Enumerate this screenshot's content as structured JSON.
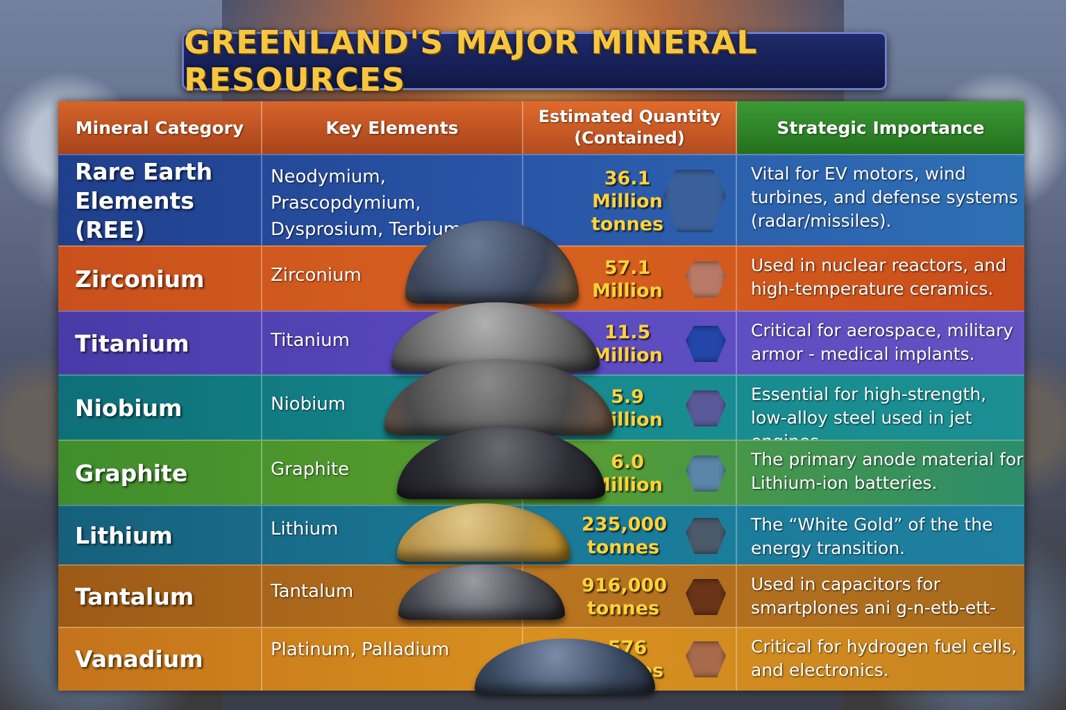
{
  "title": "GREENLAND'S MAJOR MINERAL RESOURCES",
  "headers": {
    "category": "Mineral Category",
    "elements": "Key Elements",
    "quantity_line1": "Estimated Quantity",
    "quantity_line2": "(Contained)",
    "importance": "Strategic Importance"
  },
  "rows": [
    {
      "category": "Rare Earth Elements (REE)",
      "elements": "Neodymium, Prascopdymium, Dysprosium, Terbium",
      "qty_num": "36.1",
      "qty_unit": "Million tonnes",
      "importance": "Vital for EV motors, wind turbines, and defense systems (radar/missiles).",
      "color": "#2a56a8",
      "gem_color": "#3a5f9a"
    },
    {
      "category": "Zirconium",
      "elements": "Zirconium",
      "qty_num": "57.1",
      "qty_unit": "Million",
      "importance": "Used in nuclear reactors, and high-temperature ceramics.",
      "color": "#d8621f",
      "gem_color": "#b87a66"
    },
    {
      "category": "Titanium",
      "elements": "Titanium",
      "qty_num": "11.5",
      "qty_unit": "Million",
      "importance": "Critical for aerospace, military armor - medical implants.",
      "color": "#5c4ac0",
      "gem_color": "#2346a8"
    },
    {
      "category": "Niobium",
      "elements": "Niobium",
      "qty_num": "5.9",
      "qty_unit": "Million",
      "importance": "Essential for high-strength, low-alloy steel used in jet engines.",
      "color": "#168a8e",
      "gem_color": "#5a5a9a"
    },
    {
      "category": "Graphite",
      "elements": "Graphite",
      "qty_num": "6.0",
      "qty_unit": "Million",
      "importance": "The primary anode material for Lithium-ion batteries.",
      "color": "#5a9e2e",
      "gem_color": "#5a86a8"
    },
    {
      "category": "Lithium",
      "elements": "Lithium",
      "qty_num": "235,000",
      "qty_unit": "tonnes",
      "importance": "The “White Gold” of the the energy transition.",
      "color": "#1a7a98",
      "gem_color": "#4a5a6a"
    },
    {
      "category": "Tantalum",
      "elements": "Tantalum",
      "qty_num": "916,000",
      "qty_unit": "tonnes",
      "importance": "Used in capacitors for smartplones ani g-n-etb-ett-rngys.",
      "color": "#b87420",
      "gem_color": "#6a3418"
    },
    {
      "category": "Vanadium",
      "elements": "Platinum, Palladium",
      "qty_num": "576",
      "qty_unit": "tonnes",
      "importance": "Critical for hydrogen fuel cells, and electronics.",
      "color": "#d8901e",
      "gem_color": "#a86a4a"
    }
  ]
}
